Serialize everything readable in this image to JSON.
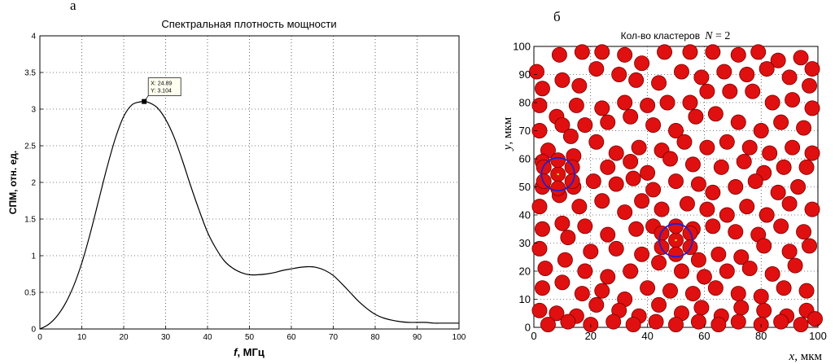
{
  "panel_labels": {
    "left": "а",
    "right": "б"
  },
  "chart_data": [
    {
      "type": "line",
      "title": "Спектральная плотность мощности",
      "xlabel_var": "f",
      "xlabel_unit": ", МГц",
      "ylabel": "СПМ, отн. ед.",
      "xlim": [
        0,
        100
      ],
      "ylim": [
        0,
        4
      ],
      "xticks": [
        0,
        10,
        20,
        30,
        40,
        50,
        60,
        70,
        80,
        90,
        100
      ],
      "yticks": [
        0,
        0.5,
        1,
        1.5,
        2,
        2.5,
        3,
        3.5,
        4
      ],
      "grid": true,
      "series": [
        {
          "x": [
            0,
            2,
            4,
            6,
            8,
            10,
            12,
            14,
            16,
            18,
            20,
            22,
            24,
            24.89,
            26,
            28,
            30,
            32,
            34,
            36,
            38,
            40,
            42,
            44,
            46,
            48,
            50,
            52,
            54,
            56,
            58,
            60,
            62,
            64,
            66,
            68,
            70,
            72,
            74,
            76,
            78,
            80,
            82,
            84,
            86,
            88,
            90,
            92,
            94,
            96,
            98,
            100
          ],
          "y": [
            0.0,
            0.06,
            0.17,
            0.34,
            0.58,
            0.9,
            1.3,
            1.75,
            2.2,
            2.6,
            2.9,
            3.06,
            3.1,
            3.104,
            3.09,
            3.02,
            2.86,
            2.62,
            2.3,
            1.95,
            1.62,
            1.32,
            1.1,
            0.93,
            0.83,
            0.77,
            0.74,
            0.74,
            0.75,
            0.77,
            0.8,
            0.82,
            0.84,
            0.85,
            0.84,
            0.8,
            0.73,
            0.62,
            0.5,
            0.38,
            0.28,
            0.2,
            0.15,
            0.12,
            0.1,
            0.09,
            0.09,
            0.09,
            0.08,
            0.08,
            0.08,
            0.08
          ]
        }
      ],
      "annotation": {
        "x": 24.89,
        "y": 3.104,
        "line1": "X: 24.89",
        "line2": "Y: 3.104"
      }
    },
    {
      "type": "scatter",
      "title_text": "Кол-во кластеров",
      "title_var": "N",
      "title_value": " = 2",
      "xlabel_var": "x",
      "xlabel_unit": ", мкм",
      "ylabel_var": "y",
      "ylabel_unit": ",  мкм",
      "xlim": [
        0,
        100
      ],
      "ylim": [
        0,
        100
      ],
      "xticks": [
        0,
        20,
        40,
        60,
        80,
        100
      ],
      "yticks": [
        0,
        10,
        20,
        30,
        40,
        50,
        60,
        70,
        80,
        90,
        100
      ],
      "grid": true,
      "particle_radius": 2.6,
      "particle_color": "#e01010",
      "cluster_color": "#2020d0",
      "clusters": [
        {
          "x": 8.5,
          "y": 54.5,
          "r": 5.8
        },
        {
          "x": 50,
          "y": 31,
          "r": 5.8
        }
      ],
      "particles": [
        [
          1,
          91
        ],
        [
          9,
          97
        ],
        [
          17,
          98
        ],
        [
          24,
          98
        ],
        [
          32,
          97
        ],
        [
          38,
          94
        ],
        [
          46,
          98
        ],
        [
          55,
          98
        ],
        [
          63,
          98
        ],
        [
          72,
          97
        ],
        [
          79,
          98
        ],
        [
          86,
          95
        ],
        [
          94,
          96
        ],
        [
          98,
          92
        ],
        [
          3,
          85
        ],
        [
          10,
          88
        ],
        [
          16,
          86
        ],
        [
          22,
          92
        ],
        [
          30,
          90
        ],
        [
          36,
          88
        ],
        [
          44,
          87
        ],
        [
          52,
          91
        ],
        [
          59,
          89
        ],
        [
          67,
          91
        ],
        [
          75,
          90
        ],
        [
          82,
          92
        ],
        [
          90,
          89
        ],
        [
          97,
          86
        ],
        [
          2,
          79
        ],
        [
          8,
          75
        ],
        [
          15,
          79
        ],
        [
          24,
          78
        ],
        [
          32,
          80
        ],
        [
          40,
          79
        ],
        [
          47,
          80
        ],
        [
          55,
          80
        ],
        [
          61,
          84
        ],
        [
          69,
          84
        ],
        [
          77,
          84
        ],
        [
          84,
          80
        ],
        [
          91,
          81
        ],
        [
          98,
          78
        ],
        [
          2,
          70
        ],
        [
          10,
          72
        ],
        [
          18,
          72
        ],
        [
          26,
          73
        ],
        [
          34,
          75
        ],
        [
          42,
          72
        ],
        [
          50,
          70
        ],
        [
          57,
          75
        ],
        [
          64,
          76
        ],
        [
          72,
          73
        ],
        [
          80,
          70
        ],
        [
          87,
          73
        ],
        [
          95,
          71
        ],
        [
          5,
          63
        ],
        [
          13,
          68
        ],
        [
          22,
          66
        ],
        [
          29,
          62
        ],
        [
          37,
          64
        ],
        [
          45,
          63
        ],
        [
          53,
          66
        ],
        [
          61,
          64
        ],
        [
          68,
          66
        ],
        [
          76,
          64
        ],
        [
          83,
          62
        ],
        [
          91,
          64
        ],
        [
          98,
          62
        ],
        [
          3,
          59
        ],
        [
          14,
          61
        ],
        [
          26,
          57
        ],
        [
          34,
          59
        ],
        [
          40,
          55
        ],
        [
          48,
          60
        ],
        [
          56,
          58
        ],
        [
          66,
          57
        ],
        [
          74,
          59
        ],
        [
          81,
          55
        ],
        [
          88,
          57
        ],
        [
          96,
          57
        ],
        [
          3,
          50
        ],
        [
          14,
          50
        ],
        [
          21,
          52
        ],
        [
          29,
          51
        ],
        [
          35,
          53
        ],
        [
          42,
          49
        ],
        [
          50,
          52
        ],
        [
          58,
          51
        ],
        [
          63,
          48
        ],
        [
          71,
          50
        ],
        [
          78,
          52
        ],
        [
          86,
          48
        ],
        [
          93,
          50
        ],
        [
          2,
          43
        ],
        [
          9,
          47
        ],
        [
          16,
          43
        ],
        [
          24,
          45
        ],
        [
          32,
          41
        ],
        [
          38,
          45
        ],
        [
          45,
          42
        ],
        [
          54,
          44
        ],
        [
          61,
          42
        ],
        [
          68,
          40
        ],
        [
          75,
          43
        ],
        [
          82,
          40
        ],
        [
          90,
          44
        ],
        [
          98,
          42
        ],
        [
          3,
          35
        ],
        [
          10,
          37
        ],
        [
          18,
          36
        ],
        [
          26,
          33
        ],
        [
          36,
          35
        ],
        [
          42,
          36
        ],
        [
          56,
          35
        ],
        [
          63,
          36
        ],
        [
          71,
          34
        ],
        [
          79,
          33
        ],
        [
          87,
          36
        ],
        [
          95,
          34
        ],
        [
          2,
          28
        ],
        [
          12,
          32
        ],
        [
          20,
          27
        ],
        [
          29,
          28
        ],
        [
          38,
          26
        ],
        [
          58,
          24
        ],
        [
          65,
          26
        ],
        [
          73,
          25
        ],
        [
          81,
          29
        ],
        [
          90,
          27
        ],
        [
          97,
          29
        ],
        [
          4,
          21
        ],
        [
          11,
          24
        ],
        [
          18,
          20
        ],
        [
          26,
          18
        ],
        [
          34,
          20
        ],
        [
          44,
          23
        ],
        [
          52,
          20
        ],
        [
          60,
          18
        ],
        [
          68,
          20
        ],
        [
          76,
          21
        ],
        [
          84,
          19
        ],
        [
          92,
          22
        ],
        [
          3,
          14
        ],
        [
          10,
          16
        ],
        [
          17,
          12
        ],
        [
          24,
          13
        ],
        [
          32,
          10
        ],
        [
          40,
          14
        ],
        [
          48,
          13
        ],
        [
          56,
          12
        ],
        [
          64,
          14
        ],
        [
          72,
          12
        ],
        [
          80,
          11
        ],
        [
          88,
          14
        ],
        [
          96,
          13
        ],
        [
          2,
          6
        ],
        [
          8,
          5
        ],
        [
          15,
          4
        ],
        [
          22,
          8
        ],
        [
          30,
          6
        ],
        [
          37,
          4
        ],
        [
          44,
          8
        ],
        [
          52,
          5
        ],
        [
          59,
          7
        ],
        [
          66,
          4
        ],
        [
          73,
          7
        ],
        [
          81,
          6
        ],
        [
          89,
          4
        ],
        [
          96,
          6
        ],
        [
          5,
          1
        ],
        [
          12,
          2
        ],
        [
          20,
          1
        ],
        [
          28,
          2
        ],
        [
          35,
          1
        ],
        [
          43,
          2
        ],
        [
          50,
          1
        ],
        [
          58,
          2
        ],
        [
          65,
          1
        ],
        [
          72,
          2
        ],
        [
          80,
          1
        ],
        [
          87,
          2
        ],
        [
          94,
          1
        ],
        [
          99,
          3
        ],
        [
          8.5,
          54.5
        ],
        [
          3.5,
          57
        ],
        [
          3.5,
          52
        ],
        [
          8.5,
          59.5
        ],
        [
          8.5,
          49.5
        ],
        [
          13.5,
          57
        ],
        [
          13.5,
          52
        ],
        [
          50,
          31
        ],
        [
          45,
          33.5
        ],
        [
          45,
          28.5
        ],
        [
          50,
          36
        ],
        [
          50,
          26
        ],
        [
          55,
          33.5
        ],
        [
          55,
          28.5
        ]
      ]
    }
  ]
}
